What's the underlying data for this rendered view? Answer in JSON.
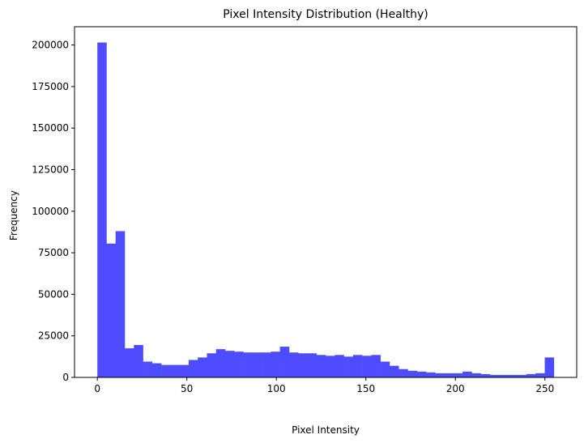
{
  "chart_data": {
    "type": "bar",
    "title": "Pixel Intensity Distribution (Healthy)",
    "xlabel": "Pixel Intensity",
    "ylabel": "Frequency",
    "xlim": [
      -12.75,
      267.75
    ],
    "ylim": [
      0,
      211000
    ],
    "x_ticks": [
      0,
      50,
      100,
      150,
      200,
      250
    ],
    "y_ticks": [
      0,
      25000,
      50000,
      75000,
      100000,
      125000,
      150000,
      175000,
      200000
    ],
    "bin_width": 5.1,
    "bin_edges_start": 0,
    "bar_color": "#4d4dff",
    "grid": false,
    "legend": "none",
    "values": [
      201500,
      80500,
      88000,
      17500,
      19500,
      9500,
      8500,
      7500,
      7500,
      7500,
      10500,
      12000,
      14500,
      17000,
      16000,
      15500,
      15000,
      15000,
      15000,
      15500,
      18500,
      15000,
      14500,
      14500,
      13500,
      13000,
      13500,
      12500,
      13500,
      13000,
      13500,
      9500,
      7000,
      5000,
      4000,
      3500,
      3000,
      2500,
      2500,
      2500,
      3500,
      2500,
      2000,
      1500,
      1500,
      1500,
      1500,
      2000,
      2500,
      12000
    ]
  }
}
